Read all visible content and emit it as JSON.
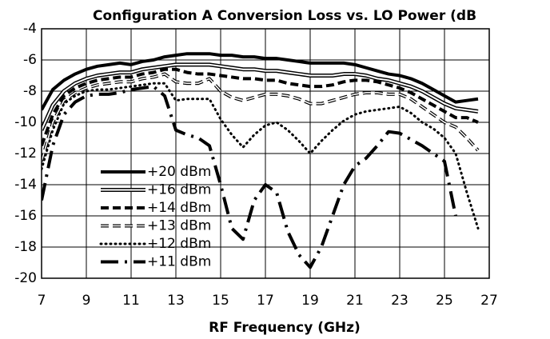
{
  "chart_data": {
    "type": "line",
    "title": "Configuration A Conversion Loss vs. LO Power (dB",
    "x_label": "RF Frequency (GHz)",
    "x": [
      7,
      7.5,
      8,
      8.5,
      9,
      9.5,
      10,
      10.5,
      11,
      11.5,
      12,
      12.5,
      13,
      13.5,
      14,
      14.5,
      15,
      15.5,
      16,
      16.5,
      17,
      17.5,
      18,
      18.5,
      19,
      19.5,
      20,
      20.5,
      21,
      21.5,
      22,
      22.5,
      23,
      23.5,
      24,
      24.5,
      25,
      25.5,
      26,
      26.5
    ],
    "series": [
      {
        "name": "+20 dBm",
        "color": "#000000",
        "values": [
          -9.2,
          -7.9,
          -7.3,
          -6.9,
          -6.6,
          -6.4,
          -6.3,
          -6.2,
          -6.3,
          -6.1,
          -6.0,
          -5.8,
          -5.7,
          -5.6,
          -5.6,
          -5.6,
          -5.7,
          -5.7,
          -5.8,
          -5.8,
          -5.9,
          -5.9,
          -6.0,
          -6.1,
          -6.2,
          -6.2,
          -6.2,
          -6.2,
          -6.3,
          -6.5,
          -6.7,
          -6.9,
          -7.0,
          -7.2,
          -7.5,
          -7.9,
          -8.3,
          -8.7,
          -8.6,
          -8.5
        ]
      },
      {
        "name": "+16 dBm",
        "color": "#000000",
        "values": [
          -10.5,
          -8.9,
          -8.0,
          -7.5,
          -7.2,
          -7.0,
          -6.9,
          -6.8,
          -6.8,
          -6.6,
          -6.5,
          -6.4,
          -6.3,
          -6.3,
          -6.3,
          -6.3,
          -6.4,
          -6.5,
          -6.6,
          -6.6,
          -6.7,
          -6.7,
          -6.8,
          -6.9,
          -7.0,
          -7.0,
          -7.0,
          -6.9,
          -6.9,
          -7.0,
          -7.2,
          -7.3,
          -7.5,
          -7.7,
          -8.0,
          -8.4,
          -8.8,
          -9.1,
          -9.2,
          -9.3
        ]
      },
      {
        "name": "+14 dBm",
        "color": "#000000",
        "values": [
          -11.5,
          -9.5,
          -8.3,
          -7.8,
          -7.5,
          -7.3,
          -7.2,
          -7.1,
          -7.1,
          -6.9,
          -6.8,
          -6.6,
          -6.6,
          -6.8,
          -6.9,
          -6.9,
          -7.0,
          -7.1,
          -7.2,
          -7.2,
          -7.3,
          -7.3,
          -7.5,
          -7.6,
          -7.7,
          -7.7,
          -7.6,
          -7.4,
          -7.3,
          -7.3,
          -7.4,
          -7.6,
          -7.8,
          -8.1,
          -8.5,
          -8.9,
          -9.3,
          -9.7,
          -9.7,
          -10.0
        ]
      },
      {
        "name": "+13 dBm",
        "color": "#000000",
        "values": [
          -12.5,
          -10.0,
          -8.6,
          -8.1,
          -7.8,
          -7.6,
          -7.5,
          -7.4,
          -7.4,
          -7.2,
          -7.1,
          -6.9,
          -7.4,
          -7.5,
          -7.5,
          -7.2,
          -8.0,
          -8.4,
          -8.6,
          -8.4,
          -8.2,
          -8.2,
          -8.3,
          -8.5,
          -8.8,
          -8.8,
          -8.6,
          -8.4,
          -8.2,
          -8.1,
          -8.1,
          -8.2,
          -8.2,
          -8.5,
          -9.0,
          -9.5,
          -10.0,
          -10.3,
          -11.0,
          -11.8
        ]
      },
      {
        "name": "+12 dBm",
        "color": "#000000",
        "values": [
          -13.0,
          -10.5,
          -8.8,
          -8.3,
          -8.0,
          -7.9,
          -7.9,
          -7.8,
          -7.7,
          -7.6,
          -7.5,
          -7.5,
          -8.6,
          -8.5,
          -8.5,
          -8.5,
          -9.8,
          -10.8,
          -11.6,
          -10.8,
          -10.2,
          -10.0,
          -10.5,
          -11.2,
          -12.0,
          -11.2,
          -10.5,
          -9.9,
          -9.5,
          -9.3,
          -9.2,
          -9.1,
          -9.0,
          -9.4,
          -10.0,
          -10.4,
          -11.0,
          -12.0,
          -14.5,
          -16.8
        ]
      },
      {
        "name": "+11 dBm",
        "color": "#000000",
        "values": [
          -15.0,
          -11.5,
          -9.5,
          -8.7,
          -8.3,
          -8.2,
          -8.2,
          -8.1,
          -7.9,
          -7.8,
          -7.7,
          -8.3,
          -10.5,
          -10.8,
          -11.0,
          -11.5,
          -14.0,
          -16.8,
          -17.5,
          -15.0,
          -14.0,
          -14.5,
          -17.0,
          -18.5,
          -19.3,
          -18.0,
          -16.0,
          -14.0,
          -12.8,
          -12.3,
          -11.5,
          -10.6,
          -10.7,
          -11.1,
          -11.5,
          -12.0,
          -12.5,
          -16.0,
          null,
          null
        ]
      }
    ],
    "xlim": [
      7,
      27
    ],
    "xticks": [
      7,
      9,
      11,
      13,
      15,
      17,
      19,
      21,
      23,
      25,
      27
    ],
    "ylim": [
      -20,
      -4
    ],
    "yticks": [
      -20,
      -18,
      -16,
      -14,
      -12,
      -10,
      -8,
      -6,
      -4
    ],
    "grid": true,
    "legend": "lower left"
  }
}
